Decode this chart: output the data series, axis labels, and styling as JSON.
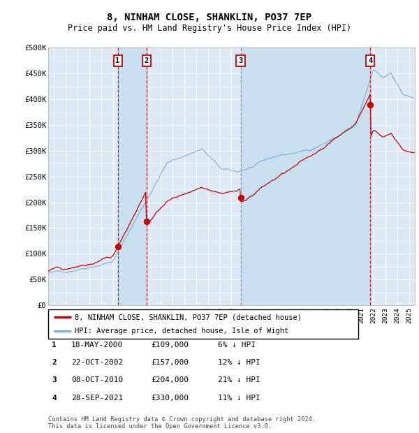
{
  "title": "8, NINHAM CLOSE, SHANKLIN, PO37 7EP",
  "subtitle": "Price paid vs. HM Land Registry's House Price Index (HPI)",
  "title_fontsize": 10,
  "subtitle_fontsize": 8.5,
  "background_color": "#ffffff",
  "plot_bg_color": "#dce9f5",
  "grid_color": "#ffffff",
  "ylim": [
    0,
    500000
  ],
  "yticks": [
    0,
    50000,
    100000,
    150000,
    200000,
    250000,
    300000,
    350000,
    400000,
    450000,
    500000
  ],
  "ytick_labels": [
    "£0",
    "£50K",
    "£100K",
    "£150K",
    "£200K",
    "£250K",
    "£300K",
    "£350K",
    "£400K",
    "£450K",
    "£500K"
  ],
  "transactions": [
    {
      "date_year": 2000.38,
      "price": 109000,
      "label": "1"
    },
    {
      "date_year": 2002.81,
      "price": 157000,
      "label": "2"
    },
    {
      "date_year": 2010.77,
      "price": 204000,
      "label": "3"
    },
    {
      "date_year": 2021.74,
      "price": 330000,
      "label": "4"
    }
  ],
  "transaction_labels": [
    {
      "label": "1",
      "date": "18-MAY-2000",
      "price": "£109,000",
      "hpi_diff": "6% ↓ HPI"
    },
    {
      "label": "2",
      "date": "22-OCT-2002",
      "price": "£157,000",
      "hpi_diff": "12% ↓ HPI"
    },
    {
      "label": "3",
      "date": "08-OCT-2010",
      "price": "£204,000",
      "hpi_diff": "21% ↓ HPI"
    },
    {
      "label": "4",
      "date": "28-SEP-2021",
      "price": "£330,000",
      "hpi_diff": "11% ↓ HPI"
    }
  ],
  "line_property_color": "#cc0000",
  "line_hpi_color": "#7ab0d4",
  "dot_color": "#cc0000",
  "vline_colors": [
    "#cc0000",
    "#cc0000",
    "#888888",
    "#cc0000"
  ],
  "highlight_color": "#c8dff0",
  "footer_text": "Contains HM Land Registry data © Crown copyright and database right 2024.\nThis data is licensed under the Open Government Licence v3.0.",
  "legend_label_property": "8, NINHAM CLOSE, SHANKLIN, PO37 7EP (detached house)",
  "legend_label_hpi": "HPI: Average price, detached house, Isle of Wight"
}
